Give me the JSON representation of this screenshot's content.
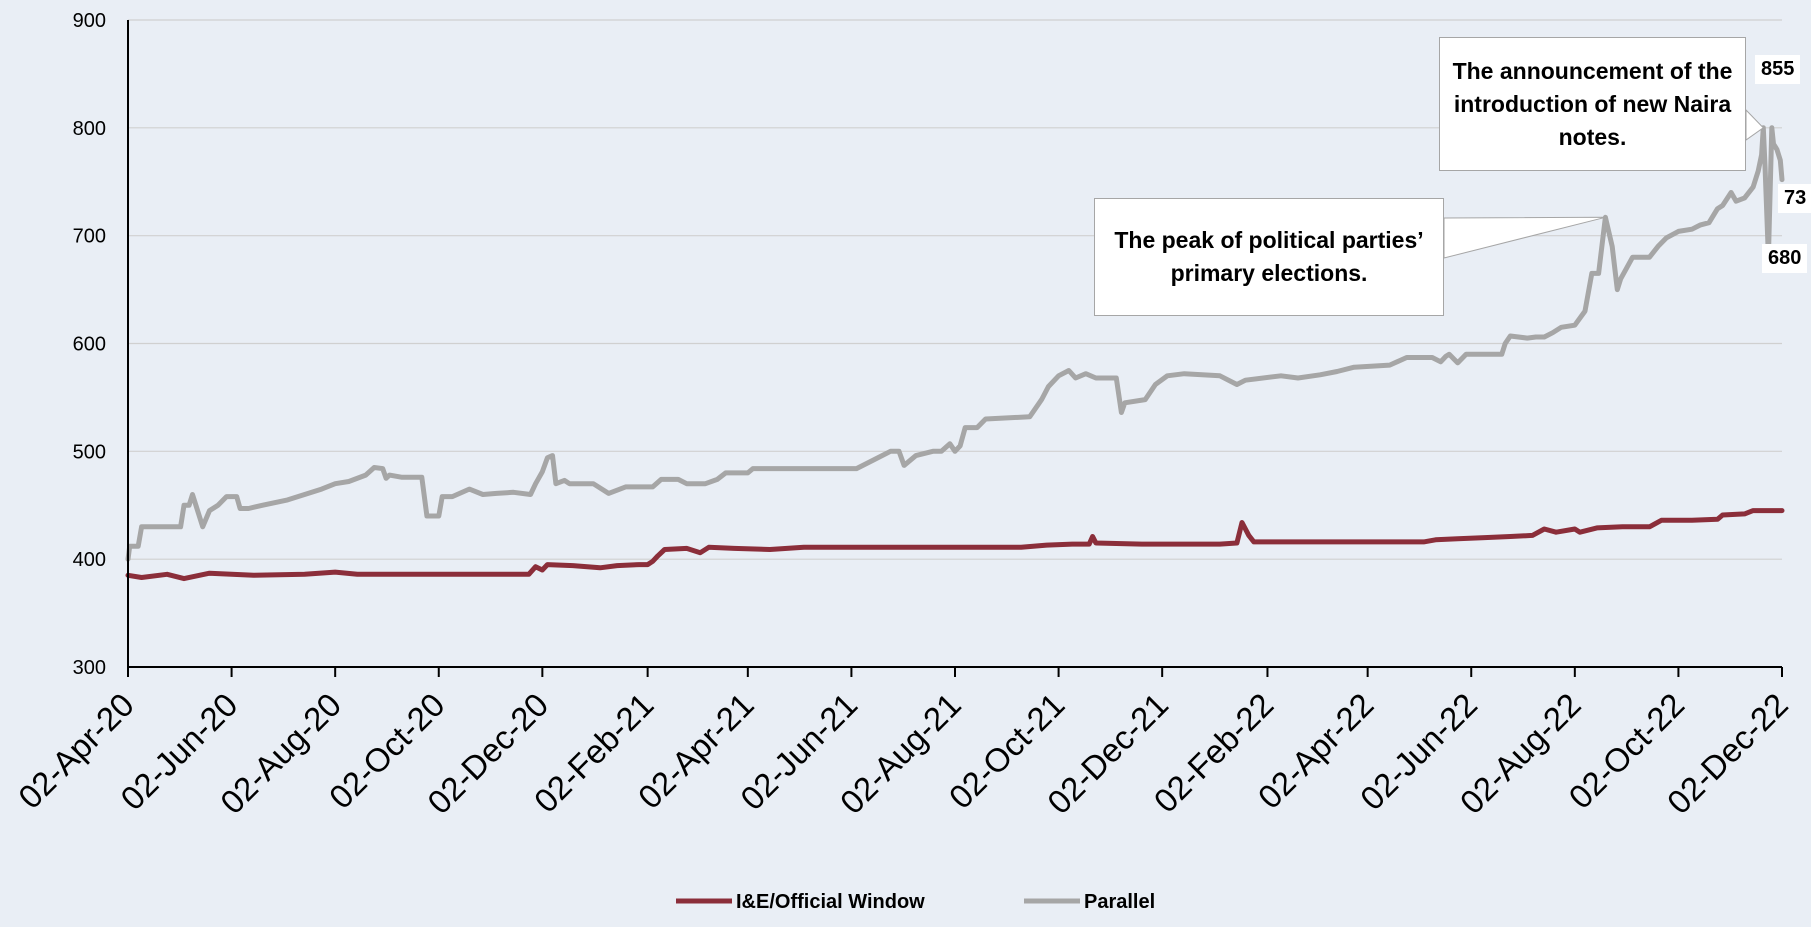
{
  "chart_data": {
    "type": "line",
    "title": "",
    "xlabel": "",
    "ylabel": "",
    "ylim": [
      300,
      900
    ],
    "yticks": [
      "300",
      "400",
      "500",
      "600",
      "700",
      "800",
      "900"
    ],
    "xlim": [
      "2020-04-02",
      "2022-12-02"
    ],
    "xtick_labels": [
      "02-Apr-20",
      "02-Jun-20",
      "02-Aug-20",
      "02-Oct-20",
      "02-Dec-20",
      "02-Feb-21",
      "02-Apr-21",
      "02-Jun-21",
      "02-Aug-21",
      "02-Oct-21",
      "02-Dec-21",
      "02-Feb-22",
      "02-Apr-22",
      "02-Jun-22",
      "02-Aug-22",
      "02-Oct-22",
      "02-Dec-22"
    ],
    "xtick_dates": [
      "2020-04-02",
      "2020-06-02",
      "2020-08-02",
      "2020-10-02",
      "2020-12-02",
      "2021-02-02",
      "2021-04-02",
      "2021-06-02",
      "2021-08-02",
      "2021-10-02",
      "2021-12-02",
      "2022-02-02",
      "2022-04-02",
      "2022-06-02",
      "2022-08-02",
      "2022-10-02",
      "2022-12-02"
    ],
    "grid": true,
    "legend_position": "bottom",
    "series": [
      {
        "name": "I&E/Official Window",
        "color": "#8b2e3a",
        "points": [
          [
            "2020-04-02",
            385
          ],
          [
            "2020-04-10",
            383
          ],
          [
            "2020-04-25",
            386
          ],
          [
            "2020-05-05",
            382
          ],
          [
            "2020-05-20",
            387
          ],
          [
            "2020-06-15",
            385
          ],
          [
            "2020-07-15",
            386
          ],
          [
            "2020-08-02",
            388
          ],
          [
            "2020-08-15",
            386
          ],
          [
            "2020-09-15",
            386
          ],
          [
            "2020-10-15",
            386
          ],
          [
            "2020-11-10",
            386
          ],
          [
            "2020-11-24",
            386
          ],
          [
            "2020-11-28",
            393
          ],
          [
            "2020-12-02",
            390
          ],
          [
            "2020-12-05",
            395
          ],
          [
            "2020-12-20",
            394
          ],
          [
            "2021-01-05",
            392
          ],
          [
            "2021-01-15",
            394
          ],
          [
            "2021-01-28",
            395
          ],
          [
            "2021-02-02",
            395
          ],
          [
            "2021-02-05",
            398
          ],
          [
            "2021-02-08",
            403
          ],
          [
            "2021-02-12",
            409
          ],
          [
            "2021-02-25",
            410
          ],
          [
            "2021-03-05",
            406
          ],
          [
            "2021-03-10",
            411
          ],
          [
            "2021-03-25",
            410
          ],
          [
            "2021-04-15",
            409
          ],
          [
            "2021-05-05",
            411
          ],
          [
            "2021-06-10",
            411
          ],
          [
            "2021-07-15",
            411
          ],
          [
            "2021-08-15",
            411
          ],
          [
            "2021-09-10",
            411
          ],
          [
            "2021-09-25",
            413
          ],
          [
            "2021-10-10",
            414
          ],
          [
            "2021-10-20",
            414
          ],
          [
            "2021-10-22",
            421
          ],
          [
            "2021-10-24",
            415
          ],
          [
            "2021-11-20",
            414
          ],
          [
            "2021-12-20",
            414
          ],
          [
            "2022-01-05",
            414
          ],
          [
            "2022-01-15",
            415
          ],
          [
            "2022-01-18",
            434
          ],
          [
            "2022-01-22",
            422
          ],
          [
            "2022-01-25",
            416
          ],
          [
            "2022-02-15",
            416
          ],
          [
            "2022-03-15",
            416
          ],
          [
            "2022-04-20",
            416
          ],
          [
            "2022-05-05",
            416
          ],
          [
            "2022-05-12",
            418
          ],
          [
            "2022-05-25",
            419
          ],
          [
            "2022-06-10",
            420
          ],
          [
            "2022-06-25",
            421
          ],
          [
            "2022-07-08",
            422
          ],
          [
            "2022-07-15",
            428
          ],
          [
            "2022-07-22",
            425
          ],
          [
            "2022-08-02",
            428
          ],
          [
            "2022-08-05",
            425
          ],
          [
            "2022-08-15",
            429
          ],
          [
            "2022-08-30",
            430
          ],
          [
            "2022-09-15",
            430
          ],
          [
            "2022-09-22",
            436
          ],
          [
            "2022-10-10",
            436
          ],
          [
            "2022-10-25",
            437
          ],
          [
            "2022-10-28",
            441
          ],
          [
            "2022-11-10",
            442
          ],
          [
            "2022-11-15",
            445
          ],
          [
            "2022-11-25",
            445
          ],
          [
            "2022-12-02",
            445
          ]
        ]
      },
      {
        "name": "Parallel",
        "color": "#a6a6a6",
        "points": [
          [
            "2020-04-02",
            400
          ],
          [
            "2020-04-03",
            412
          ],
          [
            "2020-04-08",
            412
          ],
          [
            "2020-04-10",
            430
          ],
          [
            "2020-05-03",
            430
          ],
          [
            "2020-05-05",
            450
          ],
          [
            "2020-05-08",
            450
          ],
          [
            "2020-05-10",
            460
          ],
          [
            "2020-05-12",
            450
          ],
          [
            "2020-05-16",
            430
          ],
          [
            "2020-05-20",
            445
          ],
          [
            "2020-05-25",
            450
          ],
          [
            "2020-05-30",
            458
          ],
          [
            "2020-06-05",
            458
          ],
          [
            "2020-06-07",
            447
          ],
          [
            "2020-06-12",
            447
          ],
          [
            "2020-06-20",
            450
          ],
          [
            "2020-07-05",
            455
          ],
          [
            "2020-07-15",
            460
          ],
          [
            "2020-07-25",
            465
          ],
          [
            "2020-08-02",
            470
          ],
          [
            "2020-08-10",
            472
          ],
          [
            "2020-08-20",
            478
          ],
          [
            "2020-08-25",
            485
          ],
          [
            "2020-08-30",
            484
          ],
          [
            "2020-09-01",
            475
          ],
          [
            "2020-09-03",
            478
          ],
          [
            "2020-09-10",
            476
          ],
          [
            "2020-09-22",
            476
          ],
          [
            "2020-09-25",
            440
          ],
          [
            "2020-10-02",
            440
          ],
          [
            "2020-10-04",
            458
          ],
          [
            "2020-10-10",
            458
          ],
          [
            "2020-10-20",
            465
          ],
          [
            "2020-10-28",
            460
          ],
          [
            "2020-11-05",
            461
          ],
          [
            "2020-11-15",
            462
          ],
          [
            "2020-11-25",
            460
          ],
          [
            "2020-11-28",
            470
          ],
          [
            "2020-12-02",
            481
          ],
          [
            "2020-12-05",
            494
          ],
          [
            "2020-12-08",
            496
          ],
          [
            "2020-12-10",
            470
          ],
          [
            "2020-12-15",
            473
          ],
          [
            "2020-12-18",
            470
          ],
          [
            "2021-01-01",
            470
          ],
          [
            "2021-01-10",
            461
          ],
          [
            "2021-01-20",
            467
          ],
          [
            "2021-02-05",
            467
          ],
          [
            "2021-02-10",
            474
          ],
          [
            "2021-02-20",
            474
          ],
          [
            "2021-02-25",
            470
          ],
          [
            "2021-03-08",
            470
          ],
          [
            "2021-03-15",
            474
          ],
          [
            "2021-03-20",
            480
          ],
          [
            "2021-04-02",
            480
          ],
          [
            "2021-04-05",
            484
          ],
          [
            "2021-04-25",
            484
          ],
          [
            "2021-05-05",
            484
          ],
          [
            "2021-05-20",
            484
          ],
          [
            "2021-06-05",
            484
          ],
          [
            "2021-06-15",
            492
          ],
          [
            "2021-06-25",
            500
          ],
          [
            "2021-06-30",
            500
          ],
          [
            "2021-07-03",
            487
          ],
          [
            "2021-07-10",
            496
          ],
          [
            "2021-07-20",
            500
          ],
          [
            "2021-07-25",
            500
          ],
          [
            "2021-07-30",
            507
          ],
          [
            "2021-08-02",
            500
          ],
          [
            "2021-08-05",
            505
          ],
          [
            "2021-08-08",
            522
          ],
          [
            "2021-08-15",
            522
          ],
          [
            "2021-08-20",
            530
          ],
          [
            "2021-09-15",
            532
          ],
          [
            "2021-09-22",
            548
          ],
          [
            "2021-09-26",
            560
          ],
          [
            "2021-10-02",
            570
          ],
          [
            "2021-10-08",
            575
          ],
          [
            "2021-10-12",
            568
          ],
          [
            "2021-10-18",
            572
          ],
          [
            "2021-10-24",
            568
          ],
          [
            "2021-11-05",
            568
          ],
          [
            "2021-11-08",
            536
          ],
          [
            "2021-11-10",
            545
          ],
          [
            "2021-11-22",
            548
          ],
          [
            "2021-11-28",
            562
          ],
          [
            "2021-12-05",
            570
          ],
          [
            "2021-12-15",
            572
          ],
          [
            "2022-01-05",
            570
          ],
          [
            "2022-01-15",
            562
          ],
          [
            "2022-01-20",
            566
          ],
          [
            "2022-02-10",
            570
          ],
          [
            "2022-02-20",
            568
          ],
          [
            "2022-03-05",
            571
          ],
          [
            "2022-03-15",
            574
          ],
          [
            "2022-03-25",
            578
          ],
          [
            "2022-04-15",
            580
          ],
          [
            "2022-04-25",
            587
          ],
          [
            "2022-05-10",
            587
          ],
          [
            "2022-05-15",
            583
          ],
          [
            "2022-05-18",
            588
          ],
          [
            "2022-05-20",
            590
          ],
          [
            "2022-05-25",
            582
          ],
          [
            "2022-05-30",
            590
          ],
          [
            "2022-06-20",
            590
          ],
          [
            "2022-06-22",
            600
          ],
          [
            "2022-06-25",
            607
          ],
          [
            "2022-07-05",
            605
          ],
          [
            "2022-07-10",
            606
          ],
          [
            "2022-07-15",
            606
          ],
          [
            "2022-07-20",
            610
          ],
          [
            "2022-07-25",
            615
          ],
          [
            "2022-08-02",
            617
          ],
          [
            "2022-08-08",
            630
          ],
          [
            "2022-08-12",
            665
          ],
          [
            "2022-08-16",
            665
          ],
          [
            "2022-08-20",
            717
          ],
          [
            "2022-08-24",
            690
          ],
          [
            "2022-08-27",
            650
          ],
          [
            "2022-08-29",
            660
          ],
          [
            "2022-09-05",
            680
          ],
          [
            "2022-09-15",
            680
          ],
          [
            "2022-09-20",
            690
          ],
          [
            "2022-09-25",
            698
          ],
          [
            "2022-10-02",
            704
          ],
          [
            "2022-10-10",
            706
          ],
          [
            "2022-10-15",
            710
          ],
          [
            "2022-10-20",
            712
          ],
          [
            "2022-10-25",
            725
          ],
          [
            "2022-10-28",
            728
          ],
          [
            "2022-11-02",
            740
          ],
          [
            "2022-11-05",
            732
          ],
          [
            "2022-11-10",
            735
          ],
          [
            "2022-11-15",
            745
          ],
          [
            "2022-11-18",
            760
          ],
          [
            "2022-11-20",
            775
          ],
          [
            "2022-11-21",
            800
          ],
          [
            "2022-11-22",
            765
          ],
          [
            "2022-11-24",
            680
          ],
          [
            "2022-11-26",
            800
          ],
          [
            "2022-11-27",
            785
          ],
          [
            "2022-11-29",
            780
          ],
          [
            "2022-12-01",
            770
          ],
          [
            "2022-12-02",
            752
          ]
        ]
      }
    ],
    "annotations": [
      {
        "text": "The peak of political parties’ primary elections.",
        "target": [
          "2022-08-20",
          717
        ]
      },
      {
        "text": "The announcement of the introduction of new Naira notes.",
        "target": [
          "2022-11-21",
          800
        ]
      }
    ],
    "data_labels": [
      "855",
      "73",
      "680"
    ]
  }
}
